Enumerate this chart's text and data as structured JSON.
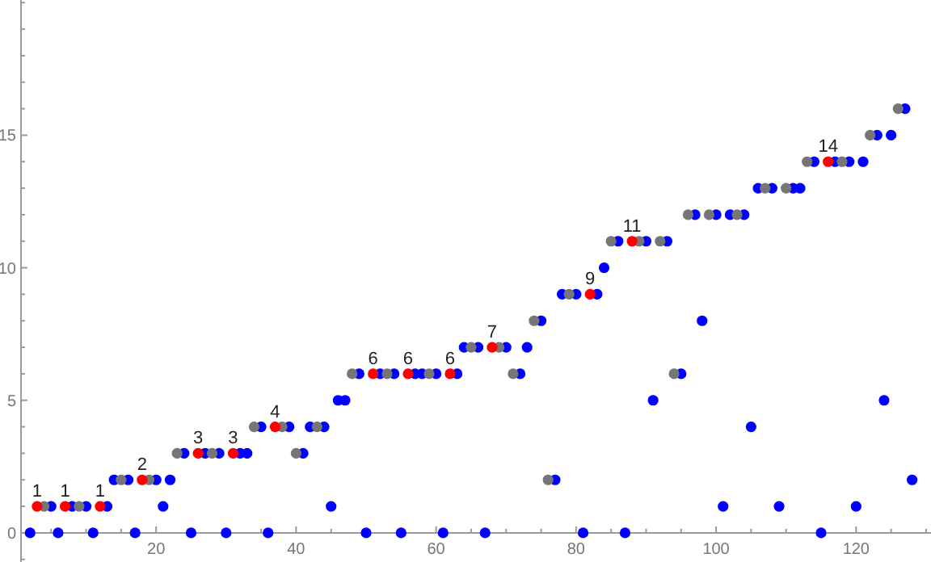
{
  "chart_data": {
    "type": "scatter",
    "marker": "circle",
    "xlim": [
      0.7,
      130.7
    ],
    "ylim": [
      -1.1,
      20.1
    ],
    "xticks": [
      {
        "value": 5,
        "label": null
      },
      {
        "value": 10,
        "label": null
      },
      {
        "value": 15,
        "label": null
      },
      20,
      {
        "value": 25,
        "label": null
      },
      {
        "value": 30,
        "label": null
      },
      {
        "value": 35,
        "label": null
      },
      40,
      {
        "value": 45,
        "label": null
      },
      {
        "value": 50,
        "label": null
      },
      {
        "value": 55,
        "label": null
      },
      60,
      {
        "value": 65,
        "label": null
      },
      {
        "value": 70,
        "label": null
      },
      {
        "value": 75,
        "label": null
      },
      80,
      {
        "value": 85,
        "label": null
      },
      {
        "value": 90,
        "label": null
      },
      {
        "value": 95,
        "label": null
      },
      100,
      {
        "value": 105,
        "label": null
      },
      {
        "value": 110,
        "label": null
      },
      {
        "value": 115,
        "label": null
      },
      120,
      {
        "value": 125,
        "label": null
      },
      {
        "value": 130,
        "label": null
      }
    ],
    "yticks": [
      {
        "value": -1,
        "label": null
      },
      0,
      {
        "value": 1,
        "label": null
      },
      {
        "value": 2,
        "label": null
      },
      {
        "value": 3,
        "label": null
      },
      {
        "value": 4,
        "label": null
      },
      5,
      {
        "value": 6,
        "label": null
      },
      {
        "value": 7,
        "label": null
      },
      {
        "value": 8,
        "label": null
      },
      {
        "value": 9,
        "label": null
      },
      10,
      {
        "value": 11,
        "label": null
      },
      {
        "value": 12,
        "label": null
      },
      {
        "value": 13,
        "label": null
      },
      {
        "value": 14,
        "label": null
      },
      15,
      {
        "value": 16,
        "label": null
      },
      {
        "value": 17,
        "label": null
      },
      {
        "value": 18,
        "label": null
      },
      {
        "value": 19,
        "label": null
      },
      {
        "value": 20,
        "label": null
      }
    ],
    "series": [
      {
        "color": "#0000ff",
        "x": [
          2,
          5,
          6,
          8,
          10,
          11,
          13,
          14,
          16,
          17,
          20,
          21,
          22,
          24,
          25,
          27,
          29,
          30,
          32,
          33,
          35,
          36,
          39,
          41,
          42,
          44,
          45,
          46,
          47,
          49,
          50,
          52,
          54,
          55,
          57,
          58,
          60,
          61,
          63,
          64,
          66,
          67,
          70,
          72,
          73,
          75,
          77,
          78,
          80,
          81,
          83,
          84,
          86,
          87,
          90,
          91,
          93,
          95,
          97,
          98,
          100,
          101,
          102,
          104,
          105,
          106,
          108,
          109,
          111,
          112,
          114,
          115,
          117,
          119,
          120,
          121,
          123,
          124,
          125,
          127,
          128
        ],
        "values": [
          0,
          1,
          0,
          1,
          1,
          0,
          1,
          2,
          2,
          0,
          2,
          1,
          2,
          3,
          0,
          3,
          3,
          0,
          3,
          3,
          4,
          0,
          4,
          3,
          4,
          4,
          1,
          5,
          5,
          6,
          0,
          6,
          6,
          0,
          6,
          6,
          6,
          0,
          6,
          7,
          7,
          0,
          7,
          6,
          7,
          8,
          2,
          9,
          9,
          0,
          9,
          10,
          11,
          0,
          11,
          5,
          11,
          6,
          12,
          8,
          12,
          1,
          12,
          12,
          4,
          13,
          13,
          1,
          13,
          13,
          14,
          0,
          14,
          14,
          1,
          14,
          15,
          5,
          15,
          16,
          2
        ]
      },
      {
        "color": "#767676",
        "x": [
          4,
          9,
          15,
          19,
          23,
          28,
          34,
          38,
          40,
          43,
          48,
          53,
          59,
          65,
          69,
          71,
          74,
          76,
          79,
          85,
          89,
          92,
          94,
          96,
          99,
          103,
          107,
          110,
          113,
          118,
          122,
          126
        ],
        "values": [
          1,
          1,
          2,
          2,
          3,
          3,
          4,
          4,
          3,
          4,
          6,
          6,
          6,
          7,
          7,
          6,
          8,
          2,
          9,
          11,
          11,
          11,
          6,
          12,
          12,
          12,
          13,
          13,
          14,
          14,
          15,
          16
        ]
      },
      {
        "color": "#ff0000",
        "x": [
          3,
          7,
          12,
          18,
          26,
          31,
          37,
          51,
          56,
          62,
          68,
          82,
          88,
          116
        ],
        "values": [
          1,
          1,
          1,
          2,
          3,
          3,
          4,
          6,
          6,
          6,
          7,
          9,
          11,
          14
        ],
        "value_labels": [
          "1",
          "1",
          "1",
          "2",
          "3",
          "3",
          "4",
          "6",
          "6",
          "6",
          "7",
          "9",
          "11",
          "14"
        ]
      }
    ]
  }
}
